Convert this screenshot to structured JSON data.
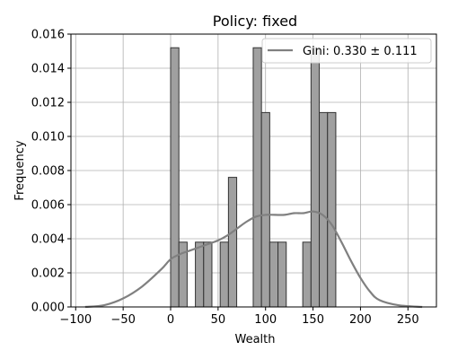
{
  "chart_data": {
    "type": "bar",
    "title": "Policy: fixed",
    "xlabel": "Wealth",
    "ylabel": "Frequency",
    "xlim": [
      -105,
      280
    ],
    "ylim": [
      0,
      0.016
    ],
    "x_ticks": [
      -100,
      -50,
      0,
      50,
      100,
      150,
      200,
      250
    ],
    "x_tick_labels": [
      "−100",
      "−50",
      "0",
      "50",
      "100",
      "150",
      "200",
      "250"
    ],
    "y_ticks": [
      0,
      0.002,
      0.004,
      0.006,
      0.008,
      0.01,
      0.012,
      0.014,
      0.016
    ],
    "y_tick_labels": [
      "0.000",
      "0.002",
      "0.004",
      "0.006",
      "0.008",
      "0.010",
      "0.012",
      "0.014",
      "0.016"
    ],
    "grid": true,
    "legend_position": "top-right",
    "histogram": {
      "bin_width": 8.7,
      "bins": [
        {
          "x0": 0.0,
          "value": 0.0152
        },
        {
          "x0": 8.7,
          "value": 0.0038
        },
        {
          "x0": 26.1,
          "value": 0.0038
        },
        {
          "x0": 34.8,
          "value": 0.0038
        },
        {
          "x0": 52.2,
          "value": 0.0038
        },
        {
          "x0": 60.9,
          "value": 0.0076
        },
        {
          "x0": 87.0,
          "value": 0.0152
        },
        {
          "x0": 95.7,
          "value": 0.0114
        },
        {
          "x0": 104.4,
          "value": 0.0038
        },
        {
          "x0": 113.1,
          "value": 0.0038
        },
        {
          "x0": 139.2,
          "value": 0.0038
        },
        {
          "x0": 147.9,
          "value": 0.0152
        },
        {
          "x0": 156.6,
          "value": 0.0114
        },
        {
          "x0": 165.3,
          "value": 0.0114
        }
      ],
      "color": "#a0a0a0"
    },
    "kde": {
      "name": "Gini: 0.330 ± 0.111",
      "color": "#808080",
      "x": [
        -90,
        -70,
        -50,
        -30,
        -10,
        0,
        10,
        20,
        30,
        40,
        50,
        60,
        70,
        80,
        90,
        100,
        110,
        120,
        130,
        140,
        150,
        160,
        170,
        180,
        190,
        200,
        210,
        220,
        240,
        265
      ],
      "y": [
        0.0,
        0.0001,
        0.0005,
        0.0012,
        0.0022,
        0.0028,
        0.0031,
        0.0033,
        0.0035,
        0.0037,
        0.0039,
        0.0042,
        0.0046,
        0.005,
        0.0053,
        0.0054,
        0.0054,
        0.0054,
        0.0055,
        0.0055,
        0.0056,
        0.0054,
        0.0048,
        0.0038,
        0.0027,
        0.0017,
        0.0009,
        0.0004,
        0.0001,
        0.0
      ]
    }
  }
}
